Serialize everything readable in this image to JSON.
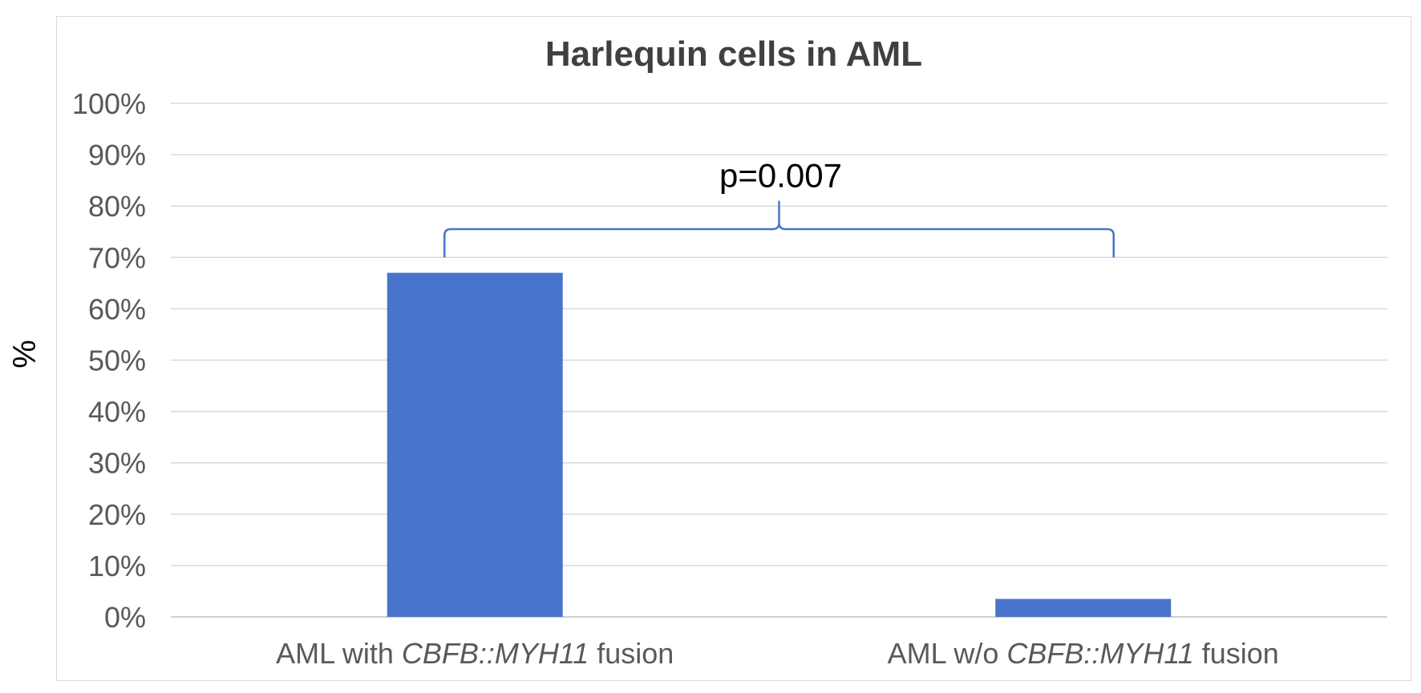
{
  "chart_data": {
    "type": "bar",
    "title": "Harlequin cells in AML",
    "ylabel": "%",
    "xlabel": "",
    "ylim": [
      0,
      100
    ],
    "yticks": [
      "0%",
      "10%",
      "20%",
      "30%",
      "40%",
      "50%",
      "60%",
      "70%",
      "80%",
      "90%",
      "100%"
    ],
    "categories": [
      {
        "prefix": "AML with ",
        "italic": "CBFB::MYH11",
        "suffix": " fusion"
      },
      {
        "prefix": "AML w/o ",
        "italic": "CBFB::MYH11",
        "suffix": " fusion"
      }
    ],
    "values": [
      67,
      3.5
    ],
    "grid": true,
    "legend": "none",
    "annotation": {
      "text": "p=0.007",
      "type": "bracket",
      "from_category": 0,
      "to_category": 1
    },
    "colors": {
      "bar": "#4874cb",
      "bracket": "#4874cb"
    }
  }
}
